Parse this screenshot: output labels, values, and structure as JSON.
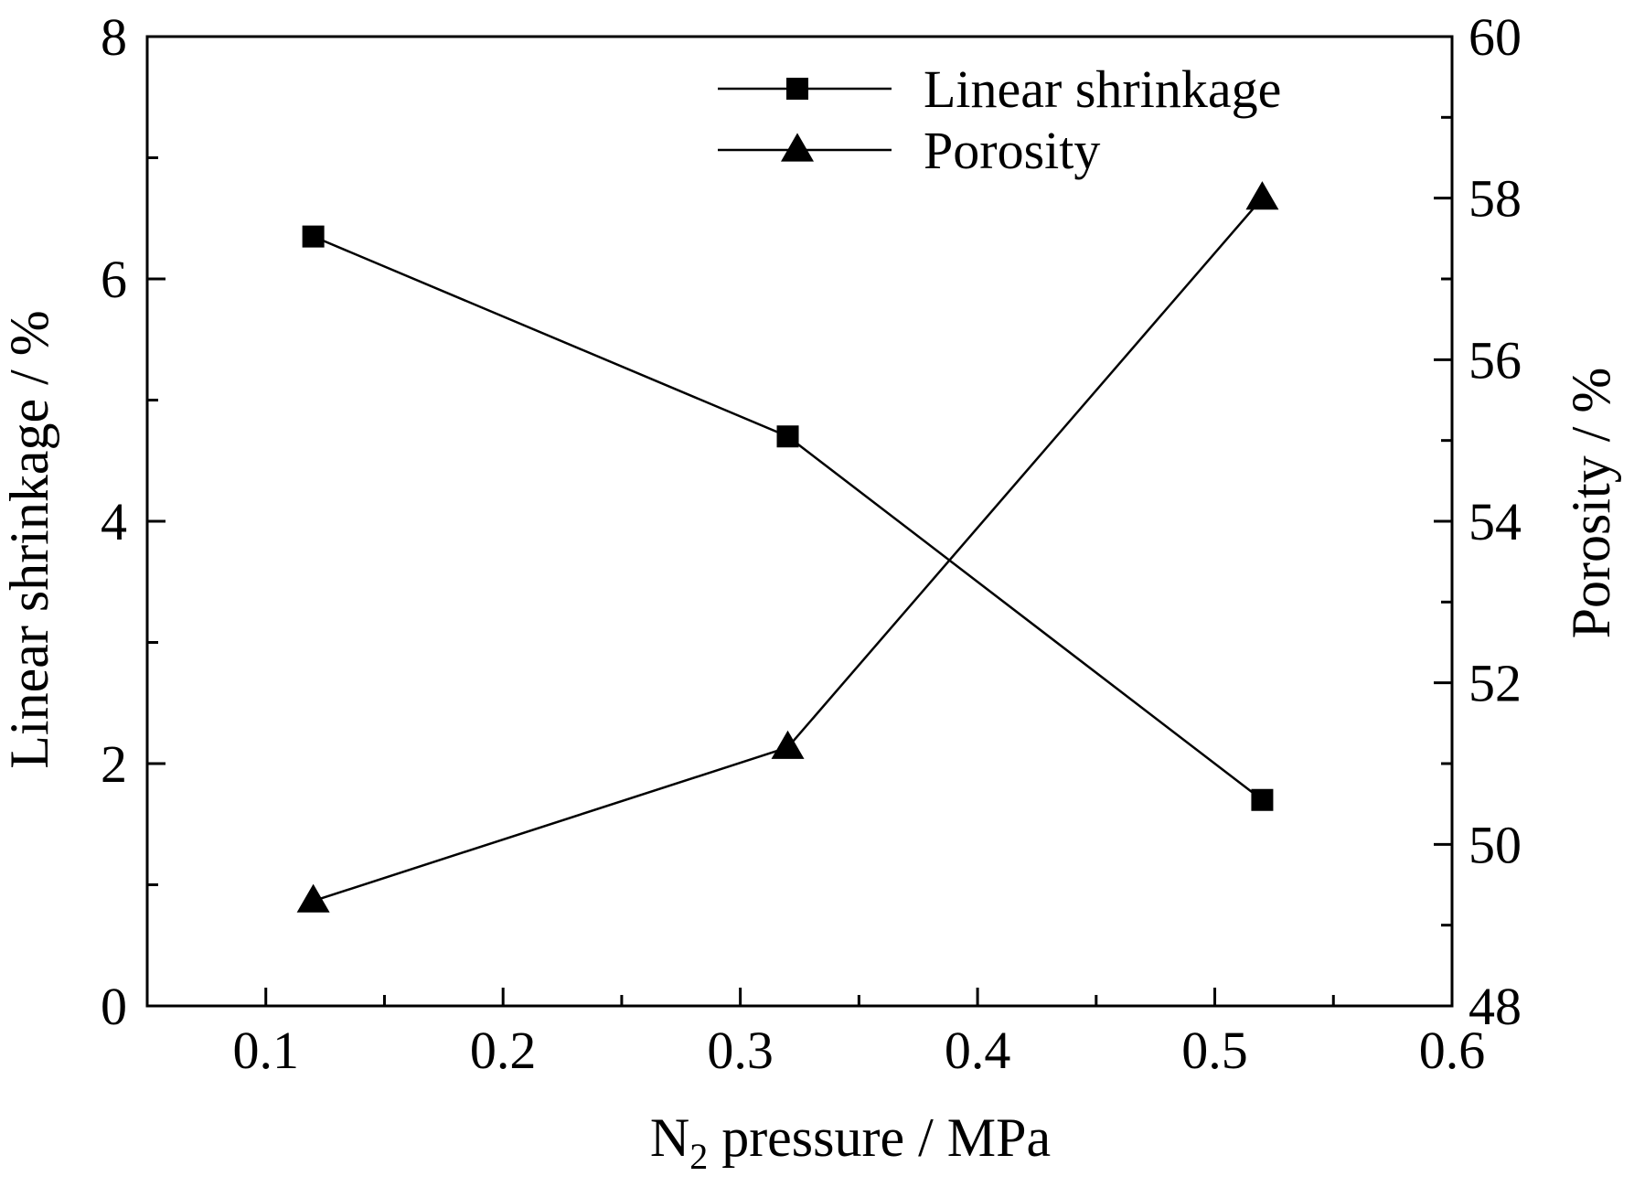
{
  "chart_data": {
    "type": "line",
    "xlabel": "N",
    "xlabel_sub": "2",
    "xlabel_rest": " pressure / MPa",
    "ylabel_left": "Linear shrinkage / %",
    "ylabel_right": "Porosity / %",
    "xlim": [
      0.05,
      0.6
    ],
    "ylim_left": [
      0,
      8
    ],
    "ylim_right": [
      48,
      60
    ],
    "x_ticks": [
      0.1,
      0.2,
      0.3,
      0.4,
      0.5,
      0.6
    ],
    "x_tick_labels": [
      "0.1",
      "0.2",
      "0.3",
      "0.4",
      "0.5",
      "0.6"
    ],
    "x_minor_ticks": [
      0.15,
      0.25,
      0.35,
      0.45,
      0.55
    ],
    "y_left_ticks": [
      0,
      2,
      4,
      6,
      8
    ],
    "y_left_tick_labels": [
      "0",
      "2",
      "4",
      "6",
      "8"
    ],
    "y_left_minor_ticks": [
      1,
      3,
      5,
      7
    ],
    "y_right_ticks": [
      48,
      50,
      52,
      54,
      56,
      58,
      60
    ],
    "y_right_tick_labels": [
      "48",
      "50",
      "52",
      "54",
      "56",
      "58",
      "60"
    ],
    "y_right_minor_ticks": [
      49,
      51,
      53,
      55,
      57,
      59
    ],
    "grid": false,
    "legend_position": "top-right",
    "series": [
      {
        "name": "Linear shrinkage",
        "axis": "left",
        "marker": "square",
        "x": [
          0.12,
          0.32,
          0.52
        ],
        "y": [
          6.35,
          4.7,
          1.7
        ]
      },
      {
        "name": "Porosity",
        "axis": "right",
        "marker": "triangle",
        "x": [
          0.12,
          0.32,
          0.52
        ],
        "y": [
          49.3,
          51.2,
          58.0
        ]
      }
    ]
  }
}
